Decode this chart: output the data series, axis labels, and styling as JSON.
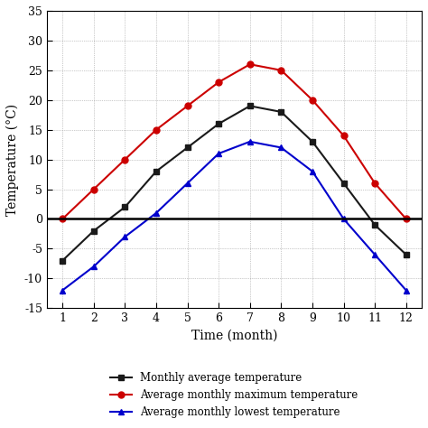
{
  "months": [
    1,
    2,
    3,
    4,
    5,
    6,
    7,
    8,
    9,
    10,
    11,
    12
  ],
  "avg_temp": [
    -7,
    -2,
    2,
    8,
    12,
    16,
    19,
    18,
    13,
    6,
    -1,
    -6
  ],
  "max_temp": [
    0,
    5,
    10,
    15,
    19,
    23,
    26,
    25,
    20,
    14,
    6,
    0
  ],
  "min_temp": [
    -12,
    -8,
    -3,
    1,
    6,
    11,
    13,
    12,
    8,
    0,
    -6,
    -12
  ],
  "avg_color": "#1a1a1a",
  "max_color": "#cc0000",
  "min_color": "#0000cc",
  "avg_marker": "s",
  "max_marker": "o",
  "min_marker": "^",
  "xlabel": "Time (month)",
  "ylabel": "Temperature (°C)",
  "ylim": [
    -15,
    35
  ],
  "xlim": [
    0.5,
    12.5
  ],
  "yticks": [
    -15,
    -10,
    -5,
    0,
    5,
    10,
    15,
    20,
    25,
    30,
    35
  ],
  "xticks": [
    1,
    2,
    3,
    4,
    5,
    6,
    7,
    8,
    9,
    10,
    11,
    12
  ],
  "legend_labels": [
    "Monthly average temperature",
    "Average monthly maximum temperature",
    "Average monthly lowest temperature"
  ],
  "bg_color": "#ffffff",
  "linewidth": 1.5,
  "markersize": 5,
  "markeredgewidth": 1.0
}
